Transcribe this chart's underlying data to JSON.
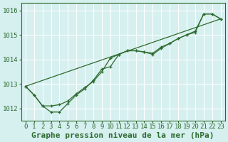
{
  "title": "Graphe pression niveau de la mer (hPa)",
  "bg_color": "#d6f0f0",
  "grid_color": "#ffffff",
  "line_color": "#2d6a2d",
  "marker_color": "#2d6a2d",
  "xlim": [
    -0.5,
    23.5
  ],
  "ylim": [
    1011.5,
    1016.3
  ],
  "yticks": [
    1012,
    1013,
    1014,
    1015,
    1016
  ],
  "xticks": [
    0,
    1,
    2,
    3,
    4,
    5,
    6,
    7,
    8,
    9,
    10,
    11,
    12,
    13,
    14,
    15,
    16,
    17,
    18,
    19,
    20,
    21,
    22,
    23
  ],
  "series1_x": [
    0,
    1,
    2,
    3,
    4,
    5,
    6,
    7,
    8,
    9,
    10,
    11,
    12,
    13,
    14,
    15,
    16,
    17,
    18,
    19,
    20,
    21,
    22,
    23
  ],
  "series1_y": [
    1012.9,
    1012.55,
    1012.1,
    1011.85,
    1011.85,
    1012.2,
    1012.55,
    1012.8,
    1013.15,
    1013.6,
    1013.7,
    1014.2,
    1014.35,
    1014.35,
    1014.3,
    1014.2,
    1014.45,
    1014.65,
    1014.85,
    1015.0,
    1015.1,
    1015.85,
    1015.85,
    1015.65
  ],
  "series2_x": [
    0,
    1,
    2,
    3,
    4,
    5,
    6,
    7,
    8,
    9,
    10,
    11,
    12,
    13,
    14,
    15,
    16,
    17,
    18,
    19,
    20,
    21,
    22,
    23
  ],
  "series2_y": [
    1012.9,
    1012.55,
    1012.1,
    1012.1,
    1012.15,
    1012.3,
    1012.6,
    1012.85,
    1013.1,
    1013.5,
    1014.05,
    1014.2,
    1014.35,
    1014.35,
    1014.3,
    1014.25,
    1014.5,
    1014.65,
    1014.85,
    1015.0,
    1015.15,
    1015.85,
    1015.85,
    1015.65
  ],
  "trend_x": [
    0,
    23
  ],
  "trend_y": [
    1012.9,
    1015.65
  ],
  "font_family": "monospace",
  "axis_label_fontsize": 8,
  "tick_fontsize": 6.5
}
